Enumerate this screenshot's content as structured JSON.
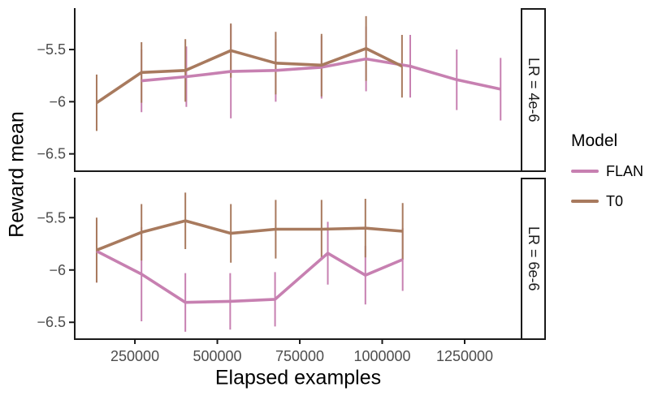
{
  "chart_data": {
    "type": "line",
    "title": "",
    "xlabel": "Elapsed examples",
    "ylabel": "Reward mean",
    "xlim": [
      70000,
      1420000
    ],
    "ylim": [
      -6.67,
      -5.1
    ],
    "x_ticks": [
      250000,
      500000,
      750000,
      1000000,
      1250000
    ],
    "x_tick_labels": [
      "250000",
      "500000",
      "750000",
      "1000000",
      "1250000"
    ],
    "y_ticks": [
      -5.5,
      -6.0,
      -6.5
    ],
    "y_tick_labels": [
      "−5.5",
      "−6",
      "−6.5"
    ],
    "grid": false,
    "error_bars": true,
    "legend": {
      "title": "Model",
      "position": "right",
      "entries": [
        "FLAN",
        "T0"
      ]
    },
    "facets": [
      {
        "label": "LR = 4e-6",
        "series": [
          {
            "name": "FLAN",
            "color": "#c780b1",
            "x": [
              270000,
              406000,
              541000,
              677000,
              816000,
              951000,
              1085000,
              1226000,
              1359000
            ],
            "y": [
              -5.8,
              -5.76,
              -5.71,
              -5.7,
              -5.67,
              -5.59,
              -5.66,
              -5.79,
              -5.88
            ],
            "err": [
              0.3,
              0.29,
              0.45,
              0.3,
              0.3,
              0.31,
              0.3,
              0.29,
              0.3
            ]
          },
          {
            "name": "T0",
            "color": "#a87a5e",
            "x": [
              134000,
              270000,
              403000,
              541000,
              677000,
              816000,
              951000,
              1060000
            ],
            "y": [
              -6.01,
              -5.72,
              -5.7,
              -5.51,
              -5.63,
              -5.65,
              -5.49,
              -5.66
            ],
            "err": [
              0.27,
              0.29,
              0.3,
              0.26,
              0.3,
              0.3,
              0.31,
              0.3
            ]
          }
        ]
      },
      {
        "label": "LR = 6e-6",
        "series": [
          {
            "name": "FLAN",
            "color": "#c780b1",
            "x": [
              134000,
              270000,
              403000,
              539000,
              675000,
              835000,
              949000,
              1062000
            ],
            "y": [
              -5.82,
              -6.04,
              -6.31,
              -6.3,
              -6.28,
              -5.84,
              -6.05,
              -5.9
            ],
            "err": [
              0.3,
              0.45,
              0.28,
              0.27,
              0.26,
              0.3,
              0.28,
              0.3
            ]
          },
          {
            "name": "T0",
            "color": "#a87a5e",
            "x": [
              134000,
              270000,
              403000,
              541000,
              677000,
              816000,
              949000,
              1062000
            ],
            "y": [
              -5.81,
              -5.64,
              -5.53,
              -5.65,
              -5.61,
              -5.61,
              -5.6,
              -5.63
            ],
            "err": [
              0.31,
              0.27,
              0.27,
              0.28,
              0.28,
              0.28,
              0.28,
              0.27
            ]
          }
        ]
      }
    ]
  }
}
